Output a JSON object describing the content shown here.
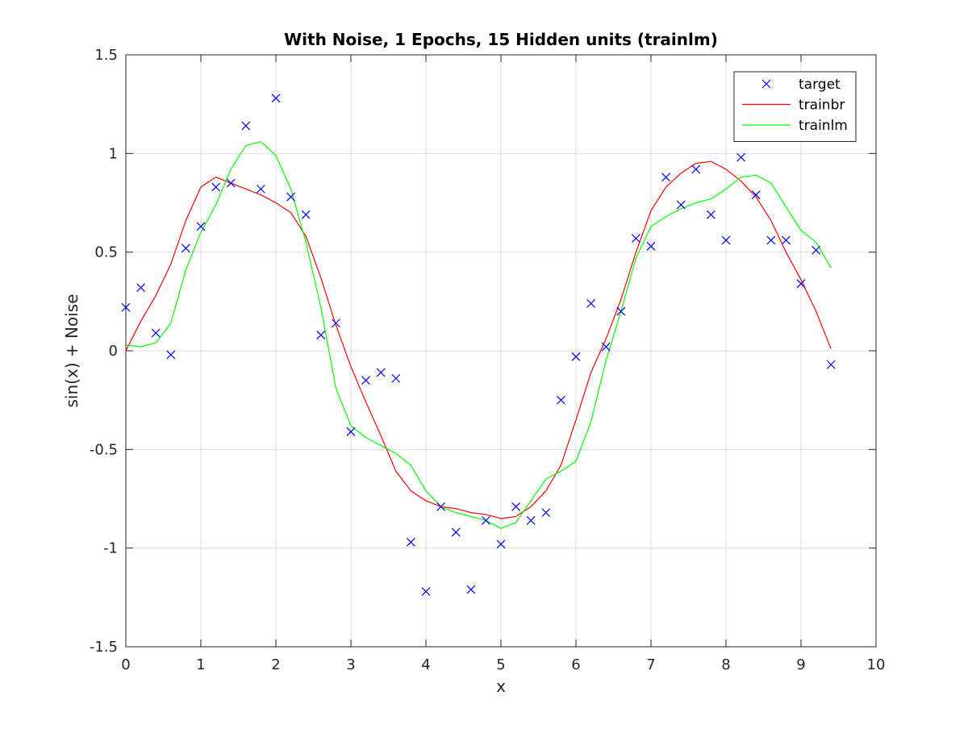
{
  "chart_data": {
    "type": "line",
    "title": "With Noise, 1 Epochs, 15 Hidden units (trainlm)",
    "xlabel": "x",
    "ylabel": "sin(x) + Noise",
    "xlim": [
      0,
      10
    ],
    "ylim": [
      -1.5,
      1.5
    ],
    "grid": true,
    "legend_position": "top-right",
    "x_ticks": [
      0,
      1,
      2,
      3,
      4,
      5,
      6,
      7,
      8,
      9,
      10
    ],
    "x_tick_labels": [
      "0",
      "1",
      "2",
      "3",
      "4",
      "5",
      "6",
      "7",
      "8",
      "9",
      "10"
    ],
    "y_ticks": [
      -1.5,
      -1,
      -0.5,
      0,
      0.5,
      1,
      1.5
    ],
    "y_tick_labels": [
      "-1.5",
      "-1",
      "-0.5",
      "0",
      "0.5",
      "1",
      "1.5"
    ],
    "x": [
      0,
      0.2,
      0.4,
      0.6,
      0.8,
      1.0,
      1.2,
      1.4,
      1.6,
      1.8,
      2.0,
      2.2,
      2.4,
      2.6,
      2.8,
      3.0,
      3.2,
      3.4,
      3.6,
      3.8,
      4.0,
      4.2,
      4.4,
      4.6,
      4.8,
      5.0,
      5.2,
      5.4,
      5.6,
      5.8,
      6.0,
      6.2,
      6.4,
      6.6,
      6.8,
      7.0,
      7.2,
      7.4,
      7.6,
      7.8,
      8.0,
      8.2,
      8.4,
      8.6,
      8.8,
      9.0,
      9.2,
      9.4
    ],
    "series": [
      {
        "name": "target",
        "style": "marker",
        "marker": "x",
        "color": "#0000ff",
        "values": [
          0.22,
          0.32,
          0.09,
          -0.02,
          0.52,
          0.63,
          0.83,
          0.85,
          1.14,
          0.82,
          1.28,
          0.78,
          0.69,
          0.08,
          0.14,
          -0.41,
          -0.15,
          -0.11,
          -0.14,
          -0.97,
          -1.22,
          -0.79,
          -0.92,
          -1.21,
          -0.86,
          -0.98,
          -0.79,
          -0.86,
          -0.82,
          -0.25,
          -0.03,
          0.24,
          0.02,
          0.2,
          0.57,
          0.53,
          0.88,
          0.74,
          0.92,
          0.69,
          0.56,
          0.98,
          0.79,
          0.56,
          0.56,
          0.34,
          0.51,
          -0.07
        ]
      },
      {
        "name": "trainbr",
        "style": "line",
        "color": "#ff0000",
        "values": [
          0.0,
          0.15,
          0.28,
          0.44,
          0.66,
          0.83,
          0.88,
          0.85,
          0.82,
          0.79,
          0.75,
          0.7,
          0.58,
          0.37,
          0.13,
          -0.08,
          -0.26,
          -0.43,
          -0.61,
          -0.71,
          -0.76,
          -0.79,
          -0.8,
          -0.82,
          -0.83,
          -0.85,
          -0.84,
          -0.79,
          -0.71,
          -0.58,
          -0.35,
          -0.11,
          0.06,
          0.26,
          0.5,
          0.71,
          0.83,
          0.9,
          0.95,
          0.96,
          0.92,
          0.86,
          0.78,
          0.66,
          0.5,
          0.36,
          0.2,
          0.01
        ]
      },
      {
        "name": "trainlm",
        "style": "line",
        "color": "#00ff00",
        "values": [
          0.03,
          0.02,
          0.04,
          0.14,
          0.41,
          0.6,
          0.74,
          0.92,
          1.04,
          1.06,
          0.99,
          0.82,
          0.55,
          0.22,
          -0.19,
          -0.38,
          -0.44,
          -0.48,
          -0.52,
          -0.58,
          -0.71,
          -0.79,
          -0.82,
          -0.84,
          -0.86,
          -0.9,
          -0.87,
          -0.76,
          -0.65,
          -0.61,
          -0.56,
          -0.36,
          -0.05,
          0.2,
          0.47,
          0.63,
          0.68,
          0.72,
          0.75,
          0.77,
          0.82,
          0.88,
          0.89,
          0.85,
          0.73,
          0.61,
          0.55,
          0.42
        ]
      }
    ]
  }
}
